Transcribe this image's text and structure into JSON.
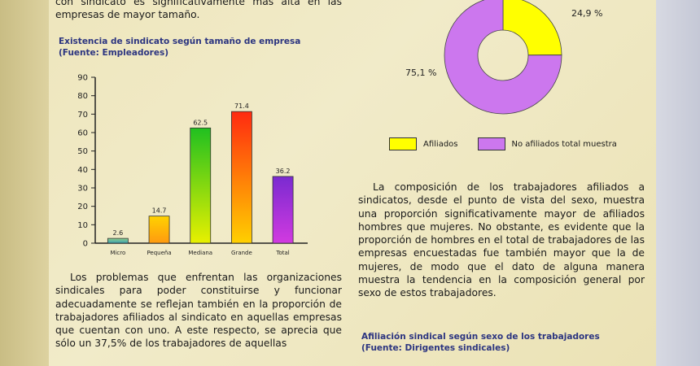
{
  "top_paragraph": "con sindicato es significativamente más alta en las empresas de mayor tamaño.",
  "left_caption": {
    "line1": "Existencia de sindicato según tamaño de empresa",
    "line2": "(Fuente: Empleadores)"
  },
  "left_paragraph": "Los problemas que enfrentan las organizaciones sindicales para poder constituirse y funcionar adecuadamente se reflejan también en la proporción de trabajadores afiliados al sindicato en aquellas empresas que cuentan con uno. A este respecto, se aprecia que sólo un 37,5% de los trabajadores de aquellas",
  "right_paragraph": "La composición de los trabajadores afiliados a sindicatos, desde el punto de vista del sexo, muestra una proporción significativamente mayor de afiliados hombres que mujeres. No obstante, es evidente que la proporción de hombres en el total de trabajadores de las empresas encuestadas fue también mayor que la de mujeres, de modo que el dato de alguna manera muestra la tendencia en la composición general por sexo de estos trabajadores.",
  "right_caption": {
    "line1": "Afiliación sindical según sexo de los trabajadores",
    "line2": "(Fuente: Dirigentes sindicales)"
  },
  "legend": {
    "item1": "Afiliados",
    "item2": "No afiliados total muestra"
  },
  "colors": {
    "afiliados": "#ffff00",
    "no_afiliados": "#cc77ee",
    "axis": "#222222"
  },
  "chart_data": [
    {
      "type": "bar",
      "categories": [
        "Micro",
        "Pequeña",
        "Mediana",
        "Grande",
        "Total"
      ],
      "values": [
        2.6,
        14.7,
        62.5,
        71.4,
        36.2
      ],
      "value_labels": [
        "2.6",
        "14.7",
        "62.5",
        "71.4",
        "36.2"
      ],
      "ylim": [
        0,
        90
      ],
      "yticks": [
        0,
        10,
        20,
        30,
        40,
        50,
        60,
        70,
        80,
        90
      ],
      "grid": false
    },
    {
      "type": "pie",
      "donut": true,
      "categories": [
        "Afiliados",
        "No afiliados total muestra"
      ],
      "values": [
        24.9,
        75.1
      ],
      "value_labels": [
        "24,9 %",
        "75,1 %"
      ],
      "legend_position": "bottom"
    }
  ]
}
